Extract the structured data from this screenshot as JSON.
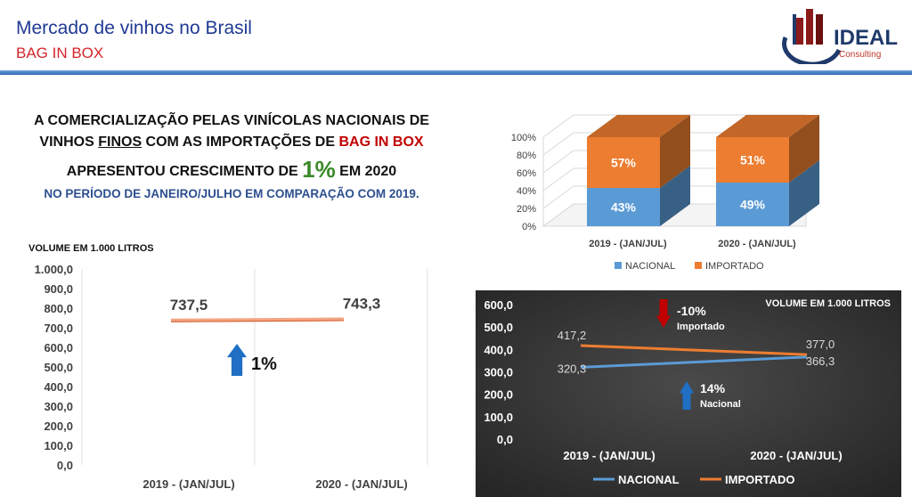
{
  "header": {
    "title": "Mercado de vinhos no Brasil",
    "subtitle": "BAG IN BOX",
    "logo_text": "IDEAL",
    "logo_sub": "Consulting"
  },
  "headline": {
    "line1": "A COMERCIALIZAÇÃO PELAS VINÍCOLAS NACIONAIS DE",
    "line2_a": "VINHOS ",
    "line2_b": "FINOS",
    "line2_c": "  COM AS IMPORTAÇÕES DE ",
    "line2_d": "BAG IN BOX",
    "line3_a": "APRESENTOU CRESCIMENTO DE ",
    "line3_b": "1%",
    "line3_c": " EM 2020",
    "line4": "NO PERÍODO DE JANEIRO/JULHO EM COMPARAÇÃO COM 2019."
  },
  "chart_data": [
    {
      "type": "bar",
      "stacked": true,
      "percent": true,
      "categories": [
        "2019 - (JAN/JUL)",
        "2020 - (JAN/JUL)"
      ],
      "series": [
        {
          "name": "NACIONAL",
          "values": [
            43,
            49
          ],
          "labels": [
            "43%",
            "49%"
          ],
          "color": "#5b9bd5"
        },
        {
          "name": "IMPORTADO",
          "values": [
            57,
            51
          ],
          "labels": [
            "57%",
            "51%"
          ],
          "color": "#ed7d31"
        }
      ],
      "y_ticks": [
        "0%",
        "20%",
        "40%",
        "60%",
        "80%",
        "100%"
      ],
      "ylim": [
        0,
        100
      ],
      "legend": "bottom"
    },
    {
      "type": "line",
      "title": "VOLUME EM 1.000 LITROS",
      "categories": [
        "2019 - (JAN/JUL)",
        "2020 - (JAN/JUL)"
      ],
      "series": [
        {
          "values": [
            737.5,
            743.3
          ],
          "labels": [
            "737,5",
            "743,3"
          ],
          "color": "#f4a582"
        }
      ],
      "y_ticks": [
        "0,0",
        "100,0",
        "200,0",
        "300,0",
        "400,0",
        "500,0",
        "600,0",
        "700,0",
        "800,0",
        "900,0",
        "1.000,0"
      ],
      "ylim": [
        0,
        1000
      ],
      "annotation": {
        "text": "1%",
        "direction": "up",
        "color": "#1f6fc5"
      }
    },
    {
      "type": "line",
      "title": "VOLUME EM 1.000 LITROS",
      "background": "#3a3a3a",
      "categories": [
        "2019 - (JAN/JUL)",
        "2020 - (JAN/JUL)"
      ],
      "series": [
        {
          "name": "NACIONAL",
          "values": [
            320.3,
            366.3
          ],
          "labels": [
            "320,3",
            "366,3"
          ],
          "color": "#5b9bd5"
        },
        {
          "name": "IMPORTADO",
          "values": [
            417.2,
            377.0
          ],
          "labels": [
            "417,2",
            "377,0"
          ],
          "color": "#ed7d31"
        }
      ],
      "y_ticks": [
        "0,0",
        "100,0",
        "200,0",
        "300,0",
        "400,0",
        "500,0",
        "600,0"
      ],
      "ylim": [
        0,
        600
      ],
      "legend": "bottom",
      "annotations": [
        {
          "text": "-10%",
          "sub": "Importado",
          "direction": "down",
          "color": "#c00000"
        },
        {
          "text": "14%",
          "sub": "Nacional",
          "direction": "up",
          "color": "#1f6fc5"
        }
      ]
    }
  ]
}
